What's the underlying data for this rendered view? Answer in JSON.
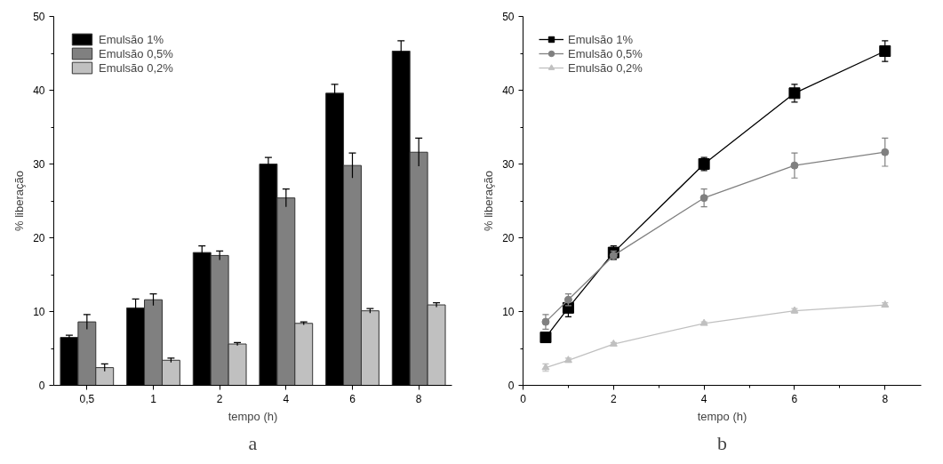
{
  "chart_data": [
    {
      "type": "bar",
      "xlabel": "tempo (h)",
      "ylabel": "% liberação",
      "annotations": [
        "a"
      ],
      "categories": [
        "0,5",
        "1",
        "2",
        "4",
        "6",
        "8"
      ],
      "series": [
        {
          "name": "Emulsão 1%",
          "color": "#000000",
          "values": [
            6.5,
            10.5,
            18.0,
            30.0,
            39.6,
            45.3
          ],
          "errors": [
            0.3,
            1.2,
            0.9,
            0.9,
            1.2,
            1.4
          ]
        },
        {
          "name": "Emulsão 0,5%",
          "color": "#808080",
          "values": [
            8.6,
            11.6,
            17.6,
            25.4,
            29.8,
            31.6
          ],
          "errors": [
            1.0,
            0.8,
            0.6,
            1.2,
            1.7,
            1.9
          ]
        },
        {
          "name": "Emulsão 0,2%",
          "color": "#c0c0c0",
          "values": [
            2.4,
            3.4,
            5.6,
            8.4,
            10.1,
            10.9
          ],
          "errors": [
            0.5,
            0.3,
            0.2,
            0.2,
            0.3,
            0.3
          ]
        }
      ],
      "ylim": [
        0,
        50
      ],
      "yticks": [
        0,
        {
          "value": 5,
          "label": null
        },
        10,
        {
          "value": 15,
          "label": null
        },
        20,
        {
          "value": 25,
          "label": null
        },
        30,
        {
          "value": 35,
          "label": null
        },
        40,
        {
          "value": 45,
          "label": null
        },
        50
      ],
      "grid": false,
      "legend": "top left"
    },
    {
      "type": "line",
      "xlabel": "tempo (h)",
      "ylabel": "% liberação",
      "annotations": [
        "b"
      ],
      "x": [
        0.5,
        1,
        2,
        4,
        6,
        8
      ],
      "series": [
        {
          "name": "Emulsão 1%",
          "color": "#000000",
          "marker": "square",
          "values": [
            6.5,
            10.5,
            18.0,
            30.0,
            39.6,
            45.3
          ],
          "errors": [
            0.3,
            1.2,
            0.9,
            0.9,
            1.2,
            1.4
          ]
        },
        {
          "name": "Emulsão 0,5%",
          "color": "#808080",
          "marker": "circle",
          "values": [
            8.6,
            11.6,
            17.6,
            25.4,
            29.8,
            31.6
          ],
          "errors": [
            1.0,
            0.8,
            0.6,
            1.2,
            1.7,
            1.9
          ]
        },
        {
          "name": "Emulsão 0,2%",
          "color": "#c0c0c0",
          "marker": "triangle",
          "values": [
            2.4,
            3.4,
            5.6,
            8.4,
            10.1,
            10.9
          ],
          "errors": [
            0.5,
            0.3,
            0.2,
            0.2,
            0.3,
            0.3
          ]
        }
      ],
      "xlim": [
        0,
        8.8
      ],
      "xticks": [
        0,
        {
          "value": 1,
          "label": null
        },
        2,
        {
          "value": 3,
          "label": null
        },
        4,
        {
          "value": 5,
          "label": null
        },
        6,
        {
          "value": 7,
          "label": null
        },
        8
      ],
      "ylim": [
        0,
        50
      ],
      "yticks": [
        0,
        {
          "value": 5,
          "label": null
        },
        10,
        {
          "value": 15,
          "label": null
        },
        20,
        {
          "value": 25,
          "label": null
        },
        30,
        {
          "value": 35,
          "label": null
        },
        40,
        {
          "value": 45,
          "label": null
        },
        50
      ],
      "grid": false,
      "legend": "top left"
    }
  ]
}
